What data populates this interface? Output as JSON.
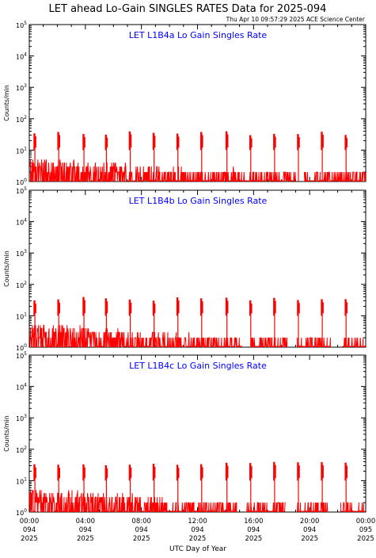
{
  "header": {
    "title": "LET ahead Lo-Gain SINGLES RATES Data for 2025-094",
    "timestamp": "Thu Apr 10 09:57:29 2025 ACE Science Center"
  },
  "colors": {
    "trace": "#ff0000",
    "panel_title": "#0000ff",
    "axes": "#000000"
  },
  "x_axis": {
    "label": "UTC Day of Year",
    "ticks": [
      {
        "time": "00:00",
        "doy": "094",
        "year": "2025",
        "hour": 0
      },
      {
        "time": "04:00",
        "doy": "094",
        "year": "2025",
        "hour": 4
      },
      {
        "time": "08:00",
        "doy": "094",
        "year": "2025",
        "hour": 8
      },
      {
        "time": "12:00",
        "doy": "094",
        "year": "2025",
        "hour": 12
      },
      {
        "time": "16:00",
        "doy": "094",
        "year": "2025",
        "hour": 16
      },
      {
        "time": "20:00",
        "doy": "094",
        "year": "2025",
        "hour": 20
      },
      {
        "time": "00:00",
        "doy": "095",
        "year": "2025",
        "hour": 24
      }
    ]
  },
  "chart_data": [
    {
      "type": "line",
      "title": "LET L1B4a Lo Gain Singles Rate",
      "ylabel": "Counts/min",
      "xlabel": "UTC Day of Year",
      "scale": "log",
      "ylim": [
        1,
        100000
      ],
      "xlim_hours": [
        0,
        24
      ],
      "y_ticks": [
        "10^0",
        "10^1",
        "10^2",
        "10^3",
        "10^4",
        "10^5"
      ],
      "baseline_range": [
        1,
        5
      ],
      "spike_hours": [
        0.4,
        2.1,
        3.9,
        5.5,
        7.2,
        8.9,
        10.6,
        12.3,
        14.1,
        15.8,
        17.5,
        19.2,
        20.9,
        22.6
      ],
      "spike_peak": 40,
      "gaps": [
        [
          19.0,
          19.6
        ]
      ]
    },
    {
      "type": "line",
      "title": "LET L1B4b Lo Gain Singles Rate",
      "ylabel": "Counts/min",
      "xlabel": "UTC Day of Year",
      "scale": "log",
      "ylim": [
        1,
        100000
      ],
      "xlim_hours": [
        0,
        24
      ],
      "y_ticks": [
        "10^0",
        "10^1",
        "10^2",
        "10^3",
        "10^4",
        "10^5"
      ],
      "baseline_range": [
        1,
        5
      ],
      "spike_hours": [
        0.4,
        2.1,
        3.9,
        5.5,
        7.2,
        8.9,
        10.6,
        12.3,
        14.1,
        15.8,
        17.5,
        19.2,
        20.9,
        22.6
      ],
      "spike_peak": 40,
      "gaps": [
        [
          15.2,
          15.8
        ],
        [
          18.4,
          19.1
        ],
        [
          21.5,
          22.3
        ]
      ]
    },
    {
      "type": "line",
      "title": "LET L1B4c Lo Gain Singles Rate",
      "ylabel": "Counts/min",
      "xlabel": "UTC Day of Year",
      "scale": "log",
      "ylim": [
        1,
        100000
      ],
      "xlim_hours": [
        0,
        24
      ],
      "y_ticks": [
        "10^0",
        "10^1",
        "10^2",
        "10^3",
        "10^4",
        "10^5"
      ],
      "baseline_range": [
        1,
        5
      ],
      "spike_hours": [
        0.4,
        2.1,
        3.9,
        5.5,
        7.2,
        8.9,
        10.6,
        12.3,
        14.1,
        15.8,
        17.5,
        19.2,
        20.9,
        22.6
      ],
      "spike_peak": 40,
      "gaps": [
        [
          14.8,
          15.5
        ],
        [
          18.3,
          19.1
        ],
        [
          21.3,
          22.2
        ]
      ]
    }
  ]
}
